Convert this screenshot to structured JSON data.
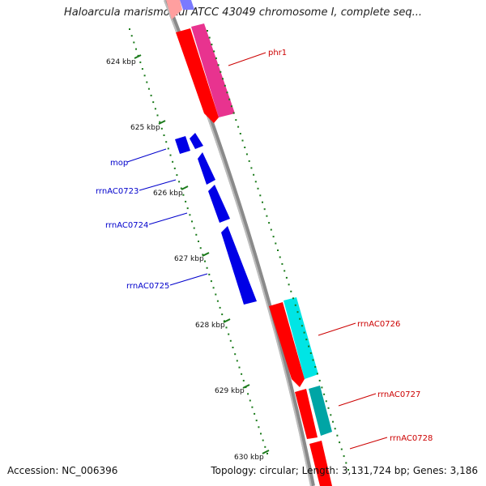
{
  "title": "Haloarcula marismortui ATCC 43049 chromosome I, complete seq...",
  "footer": {
    "accession": "Accession: NC_006396",
    "summary": "Topology: circular; Length: 3,131,724 bp; Genes: 3,186"
  },
  "ticks": [
    "624 kbp",
    "625 kbp",
    "626 kbp",
    "627 kbp",
    "628 kbp",
    "629 kbp",
    "630 kbp"
  ],
  "genes": {
    "forward": [
      {
        "label": "phr1",
        "color": "#e8338f"
      },
      {
        "label": "rrnAC0726",
        "color": "#00e5e5"
      },
      {
        "label": "rrnAC0727",
        "color": "#00a5a5"
      },
      {
        "label": "rrnAC0728",
        "color": "#ff0000"
      }
    ],
    "reverse": [
      {
        "label": "mop",
        "color": "#0000e6"
      },
      {
        "label": "rrnAC0723",
        "color": "#0000e6"
      },
      {
        "label": "rrnAC0724",
        "color": "#0000e6"
      },
      {
        "label": "rrnAC0725",
        "color": "#0000e6"
      }
    ]
  },
  "colors": {
    "backbone": "#8a8a8a",
    "forward_strand": "#ff0000",
    "reverse_label": "#0000cc",
    "forward_label": "#cc0000",
    "tick": "#1a7a1a"
  }
}
